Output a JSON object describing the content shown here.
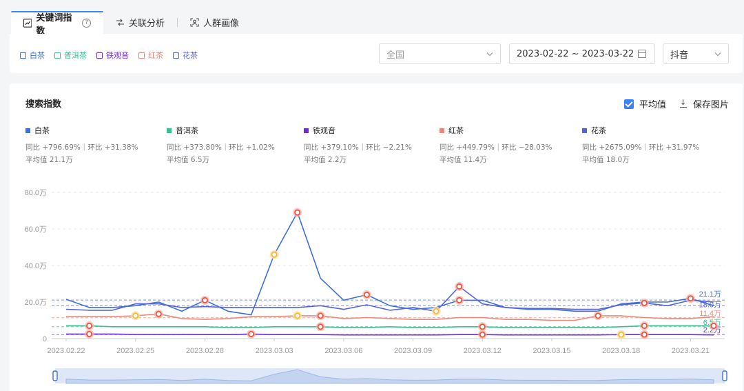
{
  "tabs": [
    {
      "label": "关键词指数",
      "icon": "trend-chart-icon"
    },
    {
      "label": "关联分析",
      "icon": "link-analysis-icon"
    },
    {
      "label": "人群画像",
      "icon": "user-portrait-icon"
    }
  ],
  "keywords": [
    {
      "label": "白茶",
      "color": "#3b6fd8"
    },
    {
      "label": "普洱茶",
      "color": "#3bbf8f"
    },
    {
      "label": "铁观音",
      "color": "#6b2fcf"
    },
    {
      "label": "红茶",
      "color": "#e8897a"
    },
    {
      "label": "花茶",
      "color": "#5563d9"
    }
  ],
  "filters": {
    "region": "全国",
    "date_range": "2023-02-22 ~ 2023-03-22",
    "platform": "抖音"
  },
  "chart_header": {
    "title": "搜索指数",
    "avg_label": "平均值",
    "save_label": "保存图片"
  },
  "stats": [
    {
      "name": "白茶",
      "color": "#3b6fd8",
      "yoy": "同比 +796.69%｜环比 +31.38%",
      "avg": "平均值 21.1万"
    },
    {
      "name": "普洱茶",
      "color": "#3bbf8f",
      "yoy": "同比 +373.80%｜环比 +1.02%",
      "avg": "平均值 6.5万"
    },
    {
      "name": "铁观音",
      "color": "#6b2fcf",
      "yoy": "同比 +379.10%｜环比 −2.21%",
      "avg": "平均值 2.2万"
    },
    {
      "name": "红茶",
      "color": "#e8897a",
      "yoy": "同比 +449.79%｜环比 −28.03%",
      "avg": "平均值 11.4万"
    },
    {
      "name": "花茶",
      "color": "#5563d9",
      "yoy": "同比 +2675.09%｜环比 +31.97%",
      "avg": "平均值 18.0万"
    }
  ],
  "chart_data": {
    "type": "line",
    "x": [
      "2023.02.22",
      "2023.02.23",
      "2023.02.24",
      "2023.02.25",
      "2023.02.26",
      "2023.02.27",
      "2023.02.28",
      "2023.03.01",
      "2023.03.02",
      "2023.03.03",
      "2023.03.04",
      "2023.03.05",
      "2023.03.06",
      "2023.03.07",
      "2023.03.08",
      "2023.03.09",
      "2023.03.10",
      "2023.03.11",
      "2023.03.12",
      "2023.03.13",
      "2023.03.14",
      "2023.03.15",
      "2023.03.16",
      "2023.03.17",
      "2023.03.18",
      "2023.03.19",
      "2023.03.20",
      "2023.03.21",
      "2023.03.22"
    ],
    "x_ticks": [
      "2023.02.22",
      "2023.02.25",
      "2023.02.28",
      "2023.03.03",
      "2023.03.06",
      "2023.03.09",
      "2023.03.12",
      "2023.03.15",
      "2023.03.18",
      "2023.03.21"
    ],
    "y_ticks": [
      "0",
      "20.0万",
      "40.0万",
      "60.0万",
      "80.0万"
    ],
    "ylim": [
      0,
      80
    ],
    "grid": true,
    "series": [
      {
        "name": "白茶",
        "color": "#3b6fd8",
        "avg": 21.1,
        "avg_label": "21.1万",
        "values": [
          21.5,
          17,
          17,
          18,
          20,
          15,
          21,
          15,
          13,
          46,
          69,
          33,
          21,
          24,
          18,
          16,
          17,
          21,
          21,
          17,
          16,
          16,
          15,
          15,
          19,
          20,
          20,
          22,
          18
        ]
      },
      {
        "name": "花茶",
        "color": "#5563d9",
        "avg": 18.0,
        "avg_label": "18.0万",
        "values": [
          16,
          15.5,
          15.5,
          19,
          19,
          17,
          17.5,
          17,
          17,
          17,
          17,
          18,
          16,
          18.5,
          15.5,
          17,
          15,
          28.5,
          19,
          17,
          16.5,
          16.5,
          16,
          16,
          18.5,
          19.5,
          18,
          21,
          20
        ]
      },
      {
        "name": "红茶",
        "color": "#e8897a",
        "avg": 11.4,
        "avg_label": "11.4万",
        "values": [
          12,
          12,
          12,
          12.5,
          13.5,
          11,
          10.5,
          11,
          12,
          12,
          12.5,
          12.5,
          11,
          11.5,
          11,
          10.5,
          10.5,
          11.5,
          11.5,
          10.5,
          10.5,
          10,
          10,
          12.5,
          12.5,
          11.5,
          11,
          11,
          12
        ]
      },
      {
        "name": "普洱茶",
        "color": "#3bbf8f",
        "avg": 6.5,
        "avg_label": "6.5万",
        "values": [
          7,
          7,
          6.5,
          6.5,
          6.5,
          6.5,
          6.5,
          6,
          6,
          6.5,
          6.5,
          6.5,
          6,
          6,
          6.5,
          6,
          6,
          6.5,
          6.5,
          6,
          6,
          6,
          6,
          6,
          6.5,
          7,
          7,
          7,
          7
        ]
      },
      {
        "name": "铁观音",
        "color": "#6b2fcf",
        "avg": 2.2,
        "avg_label": "2.2万",
        "values": [
          2.5,
          2.5,
          2.5,
          2.3,
          2.3,
          2.3,
          2.2,
          2.2,
          2.5,
          2.2,
          2.2,
          2.2,
          2,
          2,
          2,
          2,
          2,
          2.2,
          2.2,
          2,
          2,
          2,
          2,
          2,
          2.2,
          2.2,
          2.2,
          2.2,
          2
        ]
      }
    ],
    "markers": [
      {
        "series": 0,
        "i": 9,
        "kind": "minor"
      },
      {
        "series": 0,
        "i": 10,
        "kind": "major"
      },
      {
        "series": 0,
        "i": 13,
        "kind": "major"
      },
      {
        "series": 0,
        "i": 17,
        "kind": "major"
      },
      {
        "series": 0,
        "i": 6,
        "kind": "major"
      },
      {
        "series": 0,
        "i": 27,
        "kind": "major"
      },
      {
        "series": 1,
        "i": 17,
        "kind": "major"
      },
      {
        "series": 1,
        "i": 25,
        "kind": "major"
      },
      {
        "series": 1,
        "i": 16,
        "kind": "minor"
      },
      {
        "series": 2,
        "i": 4,
        "kind": "major"
      },
      {
        "series": 2,
        "i": 3,
        "kind": "minor"
      },
      {
        "series": 2,
        "i": 11,
        "kind": "major"
      },
      {
        "series": 2,
        "i": 10,
        "kind": "minor"
      },
      {
        "series": 2,
        "i": 23,
        "kind": "major"
      },
      {
        "series": 3,
        "i": 1,
        "kind": "major"
      },
      {
        "series": 3,
        "i": 11,
        "kind": "major"
      },
      {
        "series": 3,
        "i": 18,
        "kind": "major"
      },
      {
        "series": 3,
        "i": 25,
        "kind": "major"
      },
      {
        "series": 3,
        "i": 28,
        "kind": "major"
      },
      {
        "series": 4,
        "i": 1,
        "kind": "major"
      },
      {
        "series": 4,
        "i": 8,
        "kind": "major"
      },
      {
        "series": 4,
        "i": 18,
        "kind": "major"
      },
      {
        "series": 4,
        "i": 24,
        "kind": "minor"
      },
      {
        "series": 4,
        "i": 25,
        "kind": "major"
      }
    ]
  }
}
